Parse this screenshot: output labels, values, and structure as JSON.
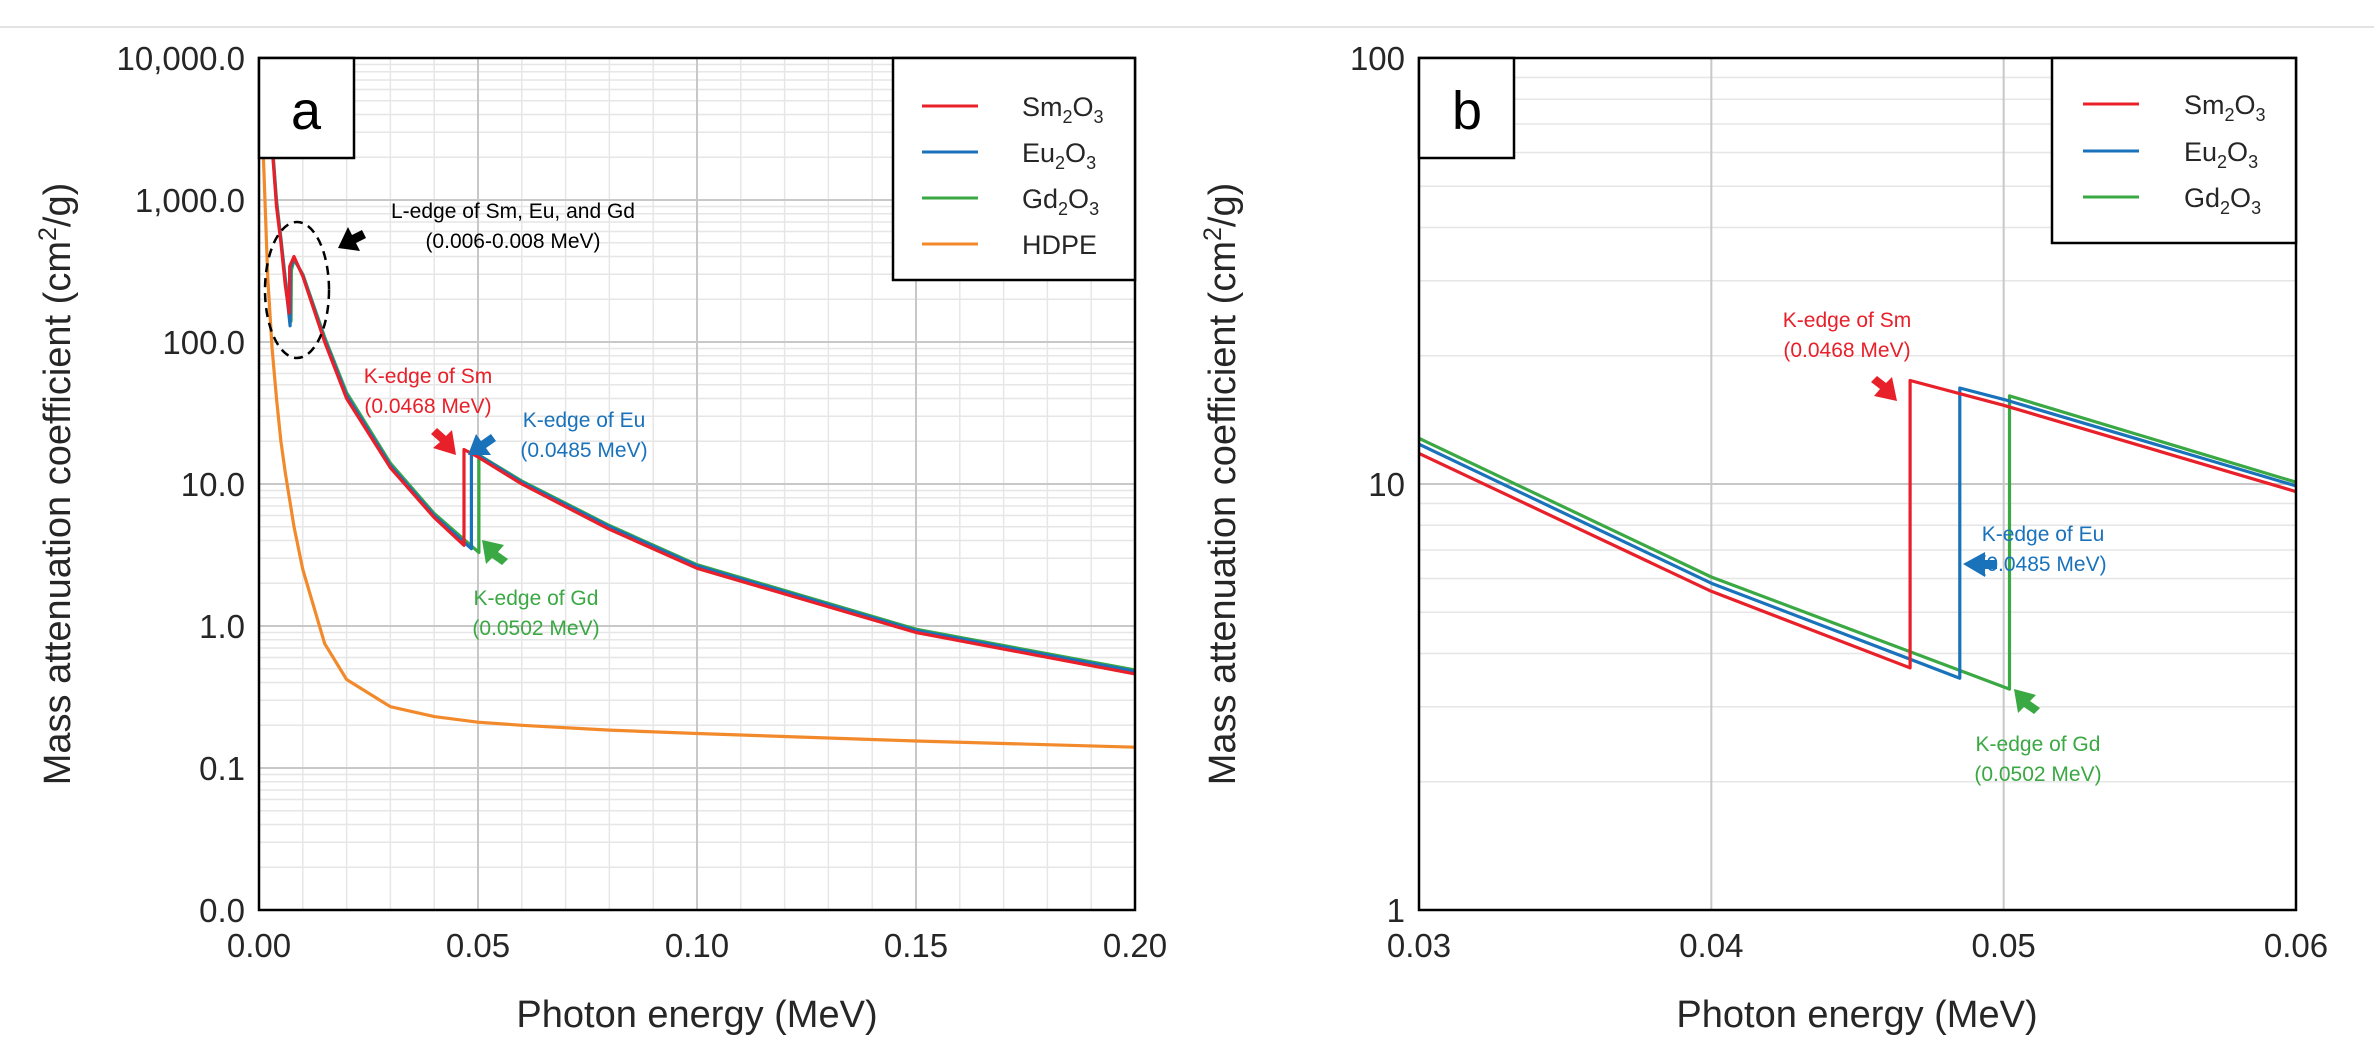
{
  "chart_data": [
    {
      "type": "line",
      "panel_label": "a",
      "xlabel": "Photon energy (MeV)",
      "ylabel_main": "Mass attenuation coefficient (cm",
      "ylabel_sup": "2",
      "ylabel_end": "/g)",
      "xlim": [
        0.0,
        0.2
      ],
      "ylim": [
        0.01,
        10000
      ],
      "yscale": "log",
      "grid": true,
      "x_tick_values": [
        0.0,
        0.05,
        0.1,
        0.15,
        0.2
      ],
      "x_tick_labels": [
        "0.00",
        "0.05",
        "0.10",
        "0.15",
        "0.20"
      ],
      "y_tick_values": [
        0.01,
        0.1,
        1,
        10,
        100,
        1000,
        10000
      ],
      "y_tick_labels": [
        "0.0",
        "0.1",
        "1.0",
        "10.0",
        "100.0",
        "1,000.0",
        "10,000.0"
      ],
      "legend_position": "top-right",
      "series": [
        {
          "key": "sm",
          "name": "Sm",
          "sub": "2",
          "name2": "O",
          "sub2": "3",
          "color": "#e8202a",
          "x": [
            0.001,
            0.002,
            0.003,
            0.004,
            0.005,
            0.006,
            0.0069,
            0.007,
            0.008,
            0.01,
            0.015,
            0.02,
            0.03,
            0.04,
            0.0468,
            0.0468,
            0.05,
            0.06,
            0.08,
            0.1,
            0.15,
            0.2
          ],
          "y": [
            2500,
            5500,
            2400,
            900,
            500,
            250,
            160,
            340,
            400,
            290,
            100,
            40,
            13,
            5.8,
            3.7,
            17.5,
            15.5,
            10,
            4.8,
            2.55,
            0.9,
            0.46
          ]
        },
        {
          "key": "eu",
          "name": "Eu",
          "sub": "2",
          "name2": "O",
          "sub2": "3",
          "color": "#1a72bb",
          "x": [
            0.001,
            0.002,
            0.003,
            0.004,
            0.005,
            0.006,
            0.0071,
            0.0072,
            0.008,
            0.01,
            0.015,
            0.02,
            0.03,
            0.04,
            0.0485,
            0.0485,
            0.05,
            0.06,
            0.08,
            0.1,
            0.15,
            0.2
          ],
          "y": [
            2600,
            6000,
            2500,
            950,
            520,
            270,
            130,
            330,
            390,
            295,
            104,
            42,
            13.5,
            6.0,
            3.5,
            17,
            16,
            10.3,
            5.0,
            2.65,
            0.93,
            0.48
          ]
        },
        {
          "key": "gd",
          "name": "Gd",
          "sub": "2",
          "name2": "O",
          "sub2": "3",
          "color": "#3aa843",
          "x": [
            0.001,
            0.002,
            0.003,
            0.004,
            0.005,
            0.006,
            0.0073,
            0.0074,
            0.008,
            0.01,
            0.015,
            0.02,
            0.03,
            0.04,
            0.0502,
            0.0502,
            0.06,
            0.08,
            0.1,
            0.15,
            0.2
          ],
          "y": [
            2700,
            6200,
            2600,
            1000,
            540,
            280,
            140,
            320,
            380,
            300,
            108,
            44,
            14,
            6.2,
            3.3,
            16,
            10.5,
            5.1,
            2.7,
            0.95,
            0.49
          ]
        },
        {
          "key": "hdpe",
          "name": "HDPE",
          "sub": "",
          "name2": "",
          "sub2": "",
          "color": "#f28a2c",
          "x": [
            0.001,
            0.002,
            0.003,
            0.004,
            0.005,
            0.006,
            0.008,
            0.01,
            0.015,
            0.02,
            0.03,
            0.04,
            0.05,
            0.06,
            0.08,
            0.1,
            0.15,
            0.2
          ],
          "y": [
            2000,
            280,
            90,
            40,
            20,
            12,
            5,
            2.5,
            0.75,
            0.42,
            0.27,
            0.23,
            0.21,
            0.2,
            0.185,
            0.175,
            0.155,
            0.14
          ]
        }
      ],
      "annotations": {
        "l_edge_line1": "L-edge of Sm, Eu, and Gd",
        "l_edge_line2": "(0.006-0.008 MeV)",
        "k_sm_line1": "K-edge of Sm",
        "k_sm_line2": "(0.0468 MeV)",
        "k_eu_line1": "K-edge of Eu",
        "k_eu_line2": "(0.0485 MeV)",
        "k_gd_line1": "K-edge of Gd",
        "k_gd_line2": "(0.0502 MeV)"
      }
    },
    {
      "type": "line",
      "panel_label": "b",
      "xlabel": "Photon energy (MeV)",
      "ylabel_main": "Mass attenuation coefficient (cm",
      "ylabel_sup": "2",
      "ylabel_end": "/g)",
      "xlim": [
        0.03,
        0.06
      ],
      "ylim": [
        1,
        100
      ],
      "yscale": "log",
      "grid": true,
      "x_tick_values": [
        0.03,
        0.04,
        0.05,
        0.06
      ],
      "x_tick_labels": [
        "0.03",
        "0.04",
        "0.05",
        "0.06"
      ],
      "y_tick_values": [
        1,
        10,
        100
      ],
      "y_tick_labels": [
        "1",
        "10",
        "100"
      ],
      "legend_position": "top-right",
      "series": [
        {
          "key": "sm",
          "name": "Sm",
          "sub": "2",
          "name2": "O",
          "sub2": "3",
          "color": "#e8202a",
          "x": [
            0.03,
            0.04,
            0.0468,
            0.0468,
            0.05,
            0.06
          ],
          "y": [
            11.8,
            5.6,
            3.7,
            17.5,
            15.3,
            9.6
          ]
        },
        {
          "key": "eu",
          "name": "Eu",
          "sub": "2",
          "name2": "O",
          "sub2": "3",
          "color": "#1a72bb",
          "x": [
            0.03,
            0.04,
            0.0485,
            0.0485,
            0.05,
            0.06
          ],
          "y": [
            12.4,
            5.85,
            3.5,
            16.8,
            15.8,
            9.9
          ]
        },
        {
          "key": "gd",
          "name": "Gd",
          "sub": "2",
          "name2": "O",
          "sub2": "3",
          "color": "#3aa843",
          "x": [
            0.03,
            0.04,
            0.0502,
            0.0502,
            0.06
          ],
          "y": [
            12.8,
            6.05,
            3.3,
            16.1,
            10.1
          ]
        }
      ],
      "annotations": {
        "k_sm_line1": "K-edge of Sm",
        "k_sm_line2": "(0.0468 MeV)",
        "k_eu_line1": "K-edge of Eu",
        "k_eu_line2": "(0.0485 MeV)",
        "k_gd_line1": "K-edge of Gd",
        "k_gd_line2": "(0.0502 MeV)"
      }
    }
  ]
}
